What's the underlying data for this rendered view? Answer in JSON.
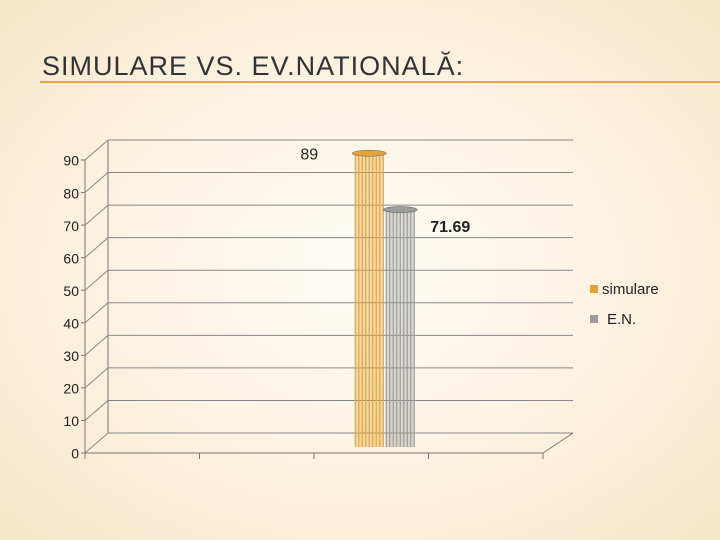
{
  "chart_data": {
    "type": "bar",
    "title": "SIMULARE VS. EV.NATIONALĂ:",
    "categories": [
      null,
      null,
      null,
      null
    ],
    "series": [
      {
        "name": "simulare",
        "color": "#e3a437",
        "values": [
          null,
          null,
          89,
          null
        ]
      },
      {
        "name": "E.N.",
        "color": "#9c9c9c",
        "values": [
          null,
          null,
          71.69,
          null
        ]
      }
    ],
    "ylim": [
      0,
      90
    ],
    "yticks": [
      0,
      10,
      20,
      30,
      40,
      50,
      60,
      70,
      80,
      90
    ],
    "grid": true,
    "legend": "right"
  }
}
